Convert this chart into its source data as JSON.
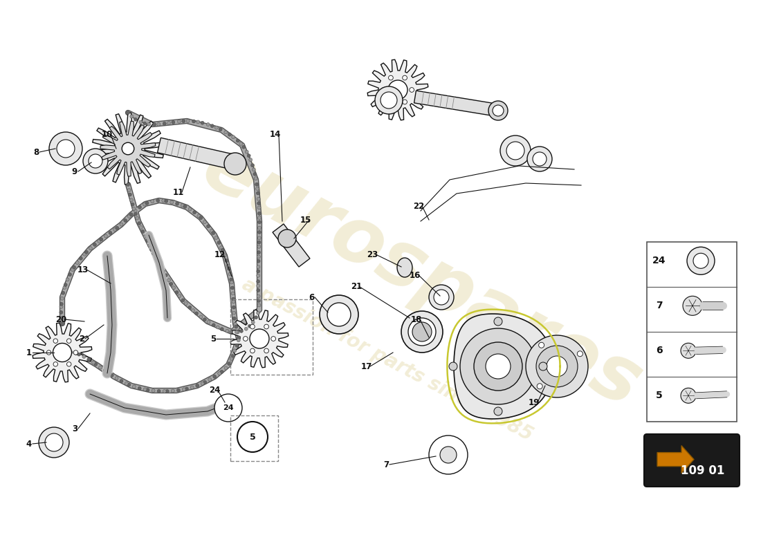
{
  "background_color": "#ffffff",
  "figure_width": 11.0,
  "figure_height": 8.0,
  "dpi": 100,
  "watermark_color": "#d4c47a",
  "watermark_alpha": 0.3,
  "line_color": "#111111",
  "text_color": "#111111",
  "sidebar_items": [
    {
      "num": "24",
      "row": 0
    },
    {
      "num": "7",
      "row": 1
    },
    {
      "num": "6",
      "row": 2
    },
    {
      "num": "5",
      "row": 3
    }
  ],
  "badge_text": "109 01"
}
